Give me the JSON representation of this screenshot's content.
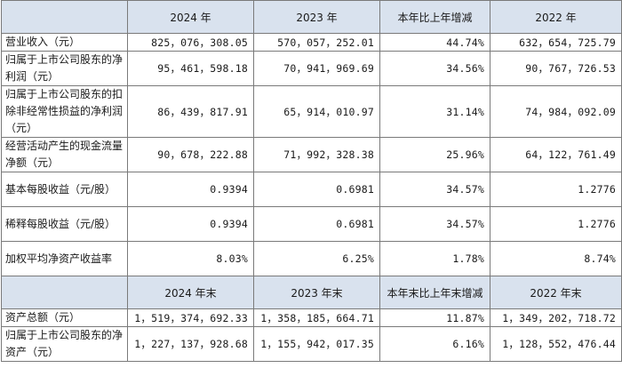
{
  "table1": {
    "headers": [
      "",
      "2024 年",
      "2023 年",
      "本年比上年增减",
      "2022 年"
    ],
    "rows": [
      {
        "label": "营业收入（元）",
        "values": [
          "825，076，308.05",
          "570，057，252.01",
          "44.74%",
          "632，654，725.79"
        ]
      },
      {
        "label": "归属于上市公司股东的净利润（元）",
        "values": [
          "95，461，598.18",
          "70，941，969.69",
          "34.56%",
          "90，767，726.53"
        ]
      },
      {
        "label": "归属于上市公司股东的扣除非经常性损益的净利润（元）",
        "values": [
          "86，439，817.91",
          "65，914，010.97",
          "31.14%",
          "74，984，092.09"
        ]
      },
      {
        "label": "经营活动产生的现金流量净额（元）",
        "values": [
          "90，678，222.88",
          "71，992，328.38",
          "25.96%",
          "64，122，761.49"
        ]
      },
      {
        "label": "基本每股收益（元/股）",
        "values": [
          "0.9394",
          "0.6981",
          "34.57%",
          "1.2776"
        ]
      },
      {
        "label": "稀释每股收益（元/股）",
        "values": [
          "0.9394",
          "0.6981",
          "34.57%",
          "1.2776"
        ]
      },
      {
        "label": "加权平均净资产收益率",
        "values": [
          "8.03%",
          "6.25%",
          "1.78%",
          "8.74%"
        ]
      }
    ]
  },
  "table2": {
    "headers": [
      "",
      "2024 年末",
      "2023 年末",
      "本年末比上年末增减",
      "2022 年末"
    ],
    "rows": [
      {
        "label": "资产总额（元）",
        "values": [
          "1，519，374，692.33",
          "1，358，185，664.71",
          "11.87%",
          "1，349，202，718.72"
        ]
      },
      {
        "label": "归属于上市公司股东的净资产（元）",
        "values": [
          "1，227，137，928.68",
          "1，155，942，017.35",
          "6.16%",
          "1，128，552，476.44"
        ]
      }
    ]
  }
}
